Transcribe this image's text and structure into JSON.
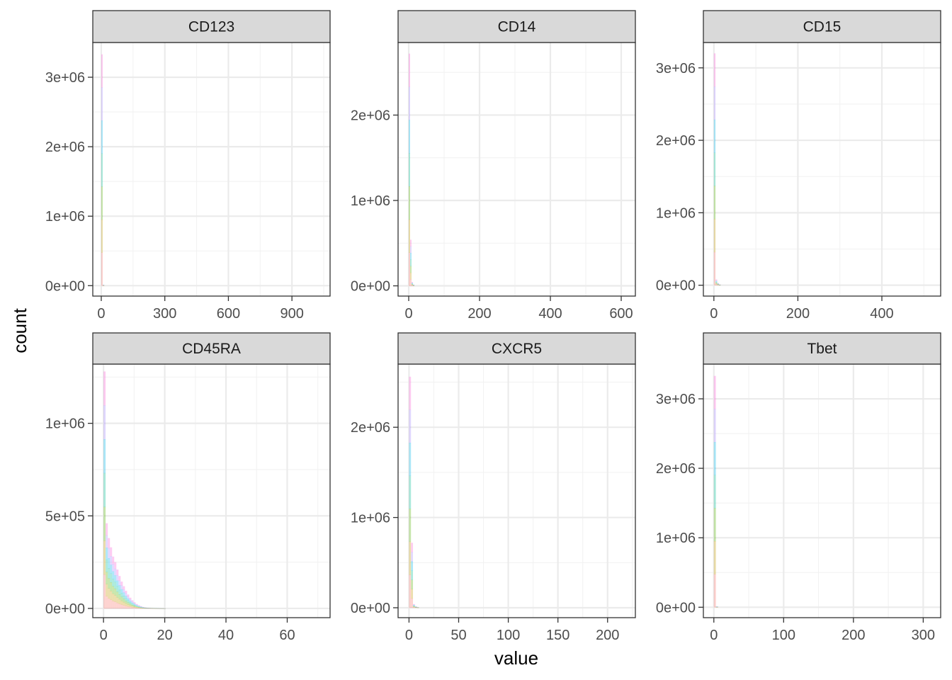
{
  "figure": {
    "xlabel": "value",
    "ylabel": "count"
  },
  "chart_data": {
    "type": "bar",
    "variant": "faceted-histogram",
    "grid": true,
    "legend": "none",
    "series_colors": [
      "#F8766D",
      "#C49A00",
      "#53B400",
      "#00C094",
      "#00B6EB",
      "#A58AFF",
      "#FB61D7"
    ],
    "facets": [
      {
        "name": "CD123",
        "xlim": [
          -40,
          1080
        ],
        "ylim": [
          -150000,
          3500000
        ],
        "x_ticks": [
          0,
          300,
          600,
          900
        ],
        "x_tick_labels": [
          "0",
          "300",
          "600",
          "900"
        ],
        "y_ticks": [
          0,
          1000000,
          2000000,
          3000000
        ],
        "y_tick_labels": [
          "0e+00",
          "1e+06",
          "2e+06",
          "3e+06"
        ],
        "bin_width": 7,
        "bins": [
          {
            "x": 0,
            "total": 3330000
          },
          {
            "x": 7,
            "total": 12000
          }
        ]
      },
      {
        "name": "CD14",
        "xlim": [
          -30,
          640
        ],
        "ylim": [
          -120000,
          2850000
        ],
        "x_ticks": [
          0,
          200,
          400,
          600
        ],
        "x_tick_labels": [
          "0",
          "200",
          "400",
          "600"
        ],
        "y_ticks": [
          0,
          1000000,
          2000000
        ],
        "y_tick_labels": [
          "0e+00",
          "1e+06",
          "2e+06"
        ],
        "bin_width": 4,
        "bins": [
          {
            "x": 0,
            "total": 2720000
          },
          {
            "x": 4,
            "total": 540000
          },
          {
            "x": 8,
            "total": 45000
          },
          {
            "x": 12,
            "total": 15000
          }
        ]
      },
      {
        "name": "CD15",
        "xlim": [
          -25,
          540
        ],
        "ylim": [
          -150000,
          3350000
        ],
        "x_ticks": [
          0,
          200,
          400
        ],
        "x_tick_labels": [
          "0",
          "200",
          "400"
        ],
        "y_ticks": [
          0,
          1000000,
          2000000,
          3000000
        ],
        "y_tick_labels": [
          "0e+00",
          "1e+06",
          "2e+06",
          "3e+06"
        ],
        "bin_width": 4,
        "bins": [
          {
            "x": 0,
            "total": 3200000
          },
          {
            "x": 4,
            "total": 80000
          },
          {
            "x": 8,
            "total": 30000
          },
          {
            "x": 12,
            "total": 10000
          }
        ]
      },
      {
        "name": "CD45RA",
        "xlim": [
          -3.5,
          74
        ],
        "ylim": [
          -50000,
          1320000
        ],
        "x_ticks": [
          0,
          20,
          40,
          60
        ],
        "x_tick_labels": [
          "0",
          "20",
          "40",
          "60"
        ],
        "y_ticks": [
          0,
          500000,
          1000000
        ],
        "y_tick_labels": [
          "0e+00",
          "5e+05",
          "1e+06"
        ],
        "bin_width": 0.7,
        "bins": [
          {
            "x": 0,
            "total": 1280000
          },
          {
            "x": 0.7,
            "total": 460000
          },
          {
            "x": 1.4,
            "total": 380000
          },
          {
            "x": 2.1,
            "total": 330000
          },
          {
            "x": 2.8,
            "total": 280000
          },
          {
            "x": 3.5,
            "total": 250000
          },
          {
            "x": 4.2,
            "total": 210000
          },
          {
            "x": 4.9,
            "total": 175000
          },
          {
            "x": 5.6,
            "total": 145000
          },
          {
            "x": 6.3,
            "total": 120000
          },
          {
            "x": 7.0,
            "total": 95000
          },
          {
            "x": 7.7,
            "total": 75000
          },
          {
            "x": 8.4,
            "total": 58000
          },
          {
            "x": 9.1,
            "total": 44000
          },
          {
            "x": 9.8,
            "total": 33000
          },
          {
            "x": 10.5,
            "total": 24000
          },
          {
            "x": 11.2,
            "total": 17000
          },
          {
            "x": 11.9,
            "total": 12000
          },
          {
            "x": 12.6,
            "total": 8000
          },
          {
            "x": 13.3,
            "total": 5500
          },
          {
            "x": 14.0,
            "total": 4000
          },
          {
            "x": 14.7,
            "total": 3000
          },
          {
            "x": 15.4,
            "total": 2200
          },
          {
            "x": 16.1,
            "total": 1600
          },
          {
            "x": 16.8,
            "total": 1100
          },
          {
            "x": 17.5,
            "total": 800
          },
          {
            "x": 18.2,
            "total": 500
          },
          {
            "x": 18.9,
            "total": 300
          },
          {
            "x": 19.6,
            "total": 200
          }
        ]
      },
      {
        "name": "CXCR5",
        "xlim": [
          -11,
          228
        ],
        "ylim": [
          -110000,
          2700000
        ],
        "x_ticks": [
          0,
          50,
          100,
          150,
          200
        ],
        "x_tick_labels": [
          "0",
          "50",
          "100",
          "150",
          "200"
        ],
        "y_ticks": [
          0,
          1000000,
          2000000
        ],
        "y_tick_labels": [
          "0e+00",
          "1e+06",
          "2e+06"
        ],
        "bin_width": 2,
        "bins": [
          {
            "x": 0,
            "total": 2560000
          },
          {
            "x": 2,
            "total": 720000
          },
          {
            "x": 4,
            "total": 40000
          },
          {
            "x": 6,
            "total": 15000
          },
          {
            "x": 8,
            "total": 5000
          }
        ]
      },
      {
        "name": "Tbet",
        "xlim": [
          -15,
          325
        ],
        "ylim": [
          -150000,
          3500000
        ],
        "x_ticks": [
          0,
          100,
          200,
          300
        ],
        "x_tick_labels": [
          "0",
          "100",
          "200",
          "300"
        ],
        "y_ticks": [
          0,
          1000000,
          2000000,
          3000000
        ],
        "y_tick_labels": [
          "0e+00",
          "1e+06",
          "2e+06",
          "3e+06"
        ],
        "bin_width": 3,
        "bins": [
          {
            "x": 0,
            "total": 3330000
          },
          {
            "x": 3,
            "total": 10000
          }
        ]
      }
    ]
  }
}
